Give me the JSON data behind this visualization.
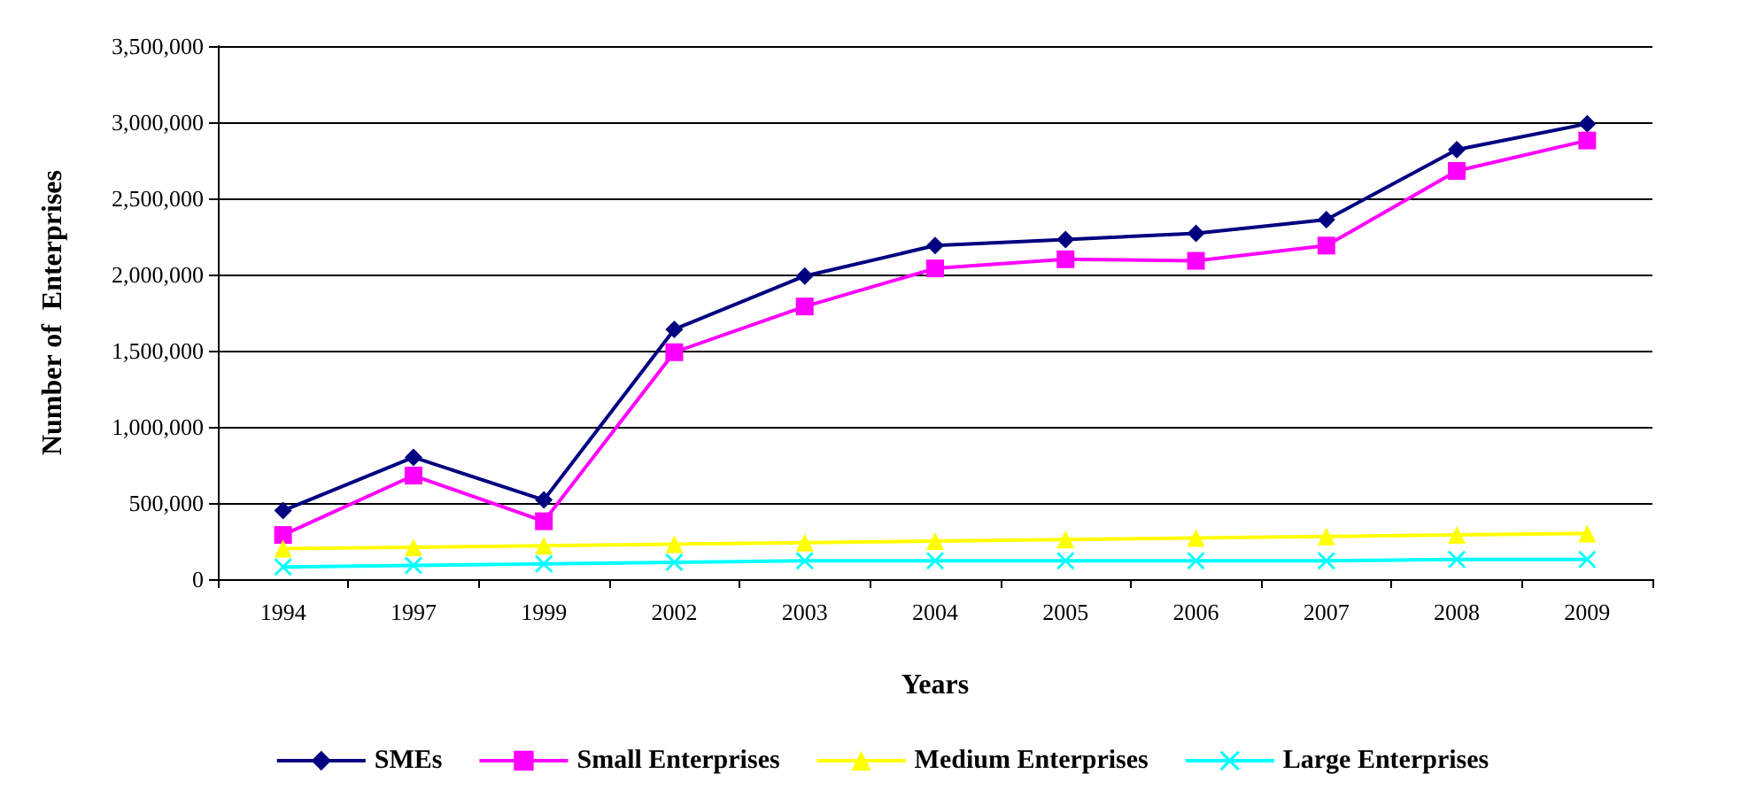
{
  "chart_data": {
    "type": "line",
    "xlabel": "Years",
    "ylabel": "Number of  Enterprises",
    "categories": [
      "1994",
      "1997",
      "1999",
      "2002",
      "2003",
      "2004",
      "2005",
      "2006",
      "2007",
      "2008",
      "2009"
    ],
    "series": [
      {
        "name": "SMEs",
        "color": "#000080",
        "marker": "diamond",
        "values": [
          450000,
          800000,
          520000,
          1640000,
          1990000,
          2190000,
          2230000,
          2270000,
          2360000,
          2820000,
          2990000
        ]
      },
      {
        "name": "Small Enterprises",
        "color": "#ff00ff",
        "marker": "square",
        "values": [
          290000,
          680000,
          380000,
          1490000,
          1790000,
          2040000,
          2100000,
          2090000,
          2190000,
          2680000,
          2880000
        ]
      },
      {
        "name": "Medium Enterprises",
        "color": "#ffff00",
        "marker": "triangle",
        "values": [
          200000,
          210000,
          220000,
          230000,
          240000,
          250000,
          260000,
          270000,
          280000,
          290000,
          300000
        ]
      },
      {
        "name": "Large Enterprises",
        "color": "#00ffff",
        "marker": "cross",
        "values": [
          80000,
          90000,
          100000,
          110000,
          120000,
          120000,
          120000,
          120000,
          120000,
          130000,
          130000
        ]
      }
    ],
    "ylim": [
      0,
      3500000
    ],
    "yticks": [
      0,
      {
        "value": 500000,
        "label": "500,000"
      },
      {
        "value": 1000000,
        "label": "1,000,000"
      },
      {
        "value": 1500000,
        "label": "1,500,000"
      },
      {
        "value": 2000000,
        "label": "2,000,000"
      },
      {
        "value": 2500000,
        "label": "2,500,000"
      },
      {
        "value": 3000000,
        "label": "3,000,000"
      },
      {
        "value": 3500000,
        "label": "3,500,000"
      }
    ],
    "grid": "y",
    "legend": "bottom"
  }
}
